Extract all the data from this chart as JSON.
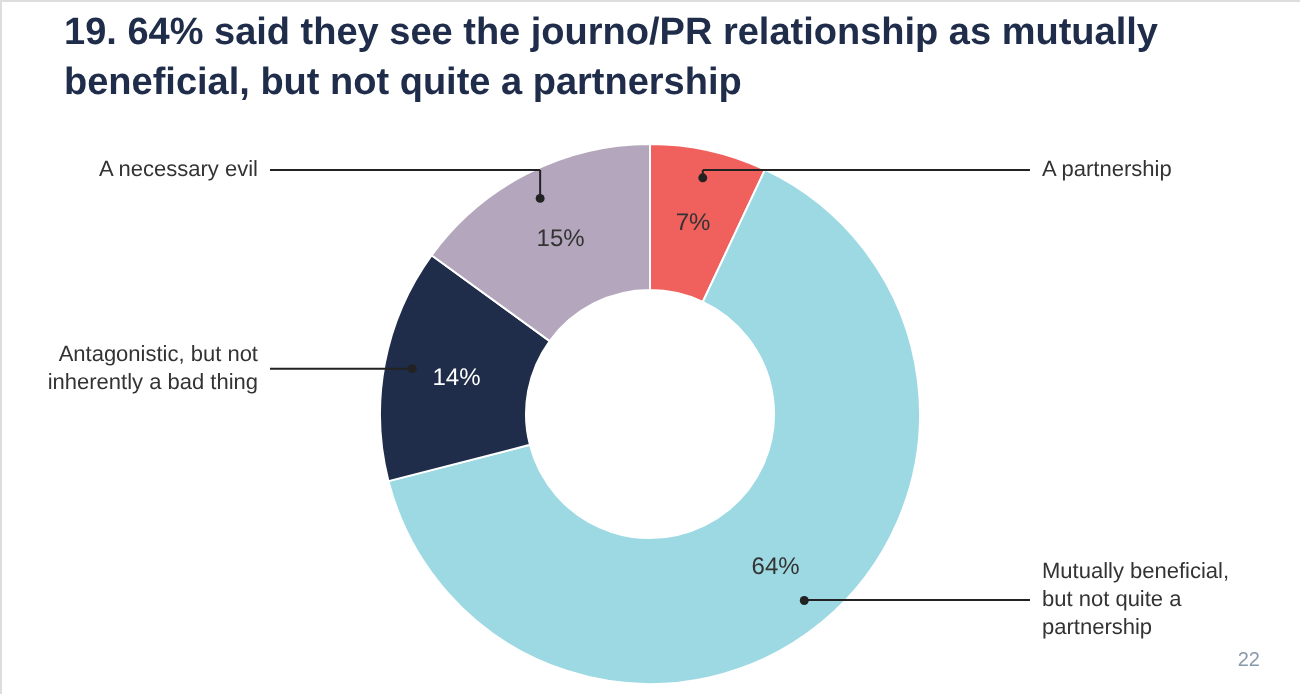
{
  "chart_data": {
    "type": "donut",
    "title": "19. 64% said they see the journo/PR relationship as mutually beneficial, but not quite a partnership",
    "categories": [
      "A partnership",
      "Mutually beneficial, but not quite a partnership",
      "Antagonistic, but not inherently a bad thing",
      "A necessary evil"
    ],
    "values": [
      7,
      64,
      14,
      15
    ],
    "colors": [
      "#f0605d",
      "#9dd9e3",
      "#1f2d4a",
      "#b3a6bd"
    ],
    "value_labels": [
      "7%",
      "64%",
      "14%",
      "15%"
    ],
    "annotations": [
      "22"
    ]
  }
}
